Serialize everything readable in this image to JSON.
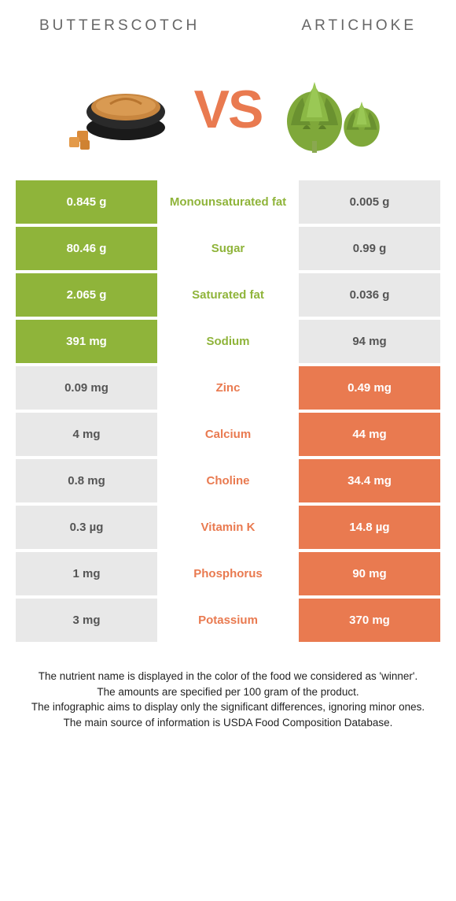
{
  "header": {
    "left_title": "BUTTERSCOTCH",
    "right_title": "ARTICHOKE"
  },
  "hero": {
    "vs_label": "VS",
    "vs_color": "#e97a50",
    "left_icon": "butterscotch-bowl",
    "right_icon": "artichoke"
  },
  "colors": {
    "green": "#8fb43a",
    "orange": "#e97a50",
    "grey": "#e8e8e8",
    "white": "#ffffff"
  },
  "rows": [
    {
      "left": "0.845 g",
      "label": "Monounsaturated fat",
      "right": "0.005 g",
      "winner": "left"
    },
    {
      "left": "80.46 g",
      "label": "Sugar",
      "right": "0.99 g",
      "winner": "left"
    },
    {
      "left": "2.065 g",
      "label": "Saturated fat",
      "right": "0.036 g",
      "winner": "left"
    },
    {
      "left": "391 mg",
      "label": "Sodium",
      "right": "94 mg",
      "winner": "left"
    },
    {
      "left": "0.09 mg",
      "label": "Zinc",
      "right": "0.49 mg",
      "winner": "right"
    },
    {
      "left": "4 mg",
      "label": "Calcium",
      "right": "44 mg",
      "winner": "right"
    },
    {
      "left": "0.8 mg",
      "label": "Choline",
      "right": "34.4 mg",
      "winner": "right"
    },
    {
      "left": "0.3 µg",
      "label": "Vitamin K",
      "right": "14.8 µg",
      "winner": "right"
    },
    {
      "left": "1 mg",
      "label": "Phosphorus",
      "right": "90 mg",
      "winner": "right"
    },
    {
      "left": "3 mg",
      "label": "Potassium",
      "right": "370 mg",
      "winner": "right"
    }
  ],
  "footer": {
    "line1": "The nutrient name is displayed in the color of the food we considered as 'winner'.",
    "line2": "The amounts are specified per 100 gram of the product.",
    "line3": "The infographic aims to display only the significant differences, ignoring minor ones.",
    "line4": "The main source of information is USDA Food Composition Database."
  }
}
